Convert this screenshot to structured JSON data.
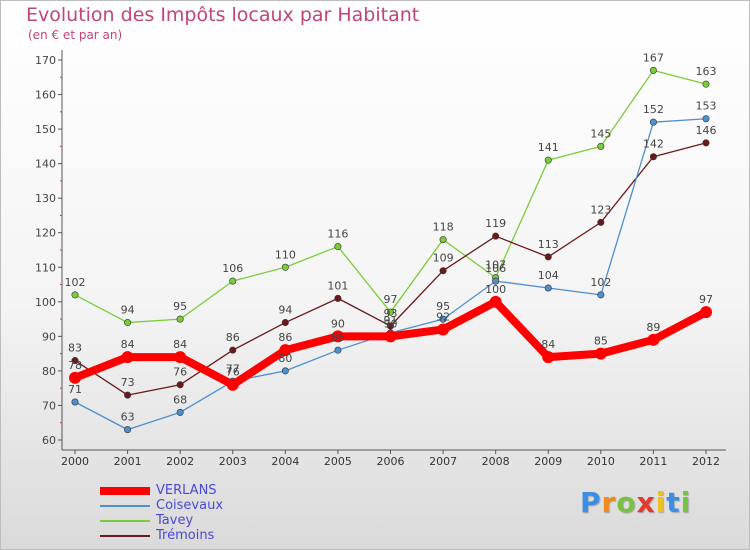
{
  "header": {
    "title": "Evolution des Impôts locaux par Habitant",
    "subtitle": "(en € et par an)"
  },
  "logo": {
    "letters": [
      "P",
      "r",
      "o",
      "x",
      "i",
      "t",
      "i"
    ],
    "colors": [
      "#3a8ee6",
      "#f08a1c",
      "#79c043",
      "#e23a2a",
      "#f0c020",
      "#3a8ee6",
      "#79c043"
    ]
  },
  "chart_data": {
    "type": "line",
    "title": "Evolution des Impôts locaux par Habitant",
    "subtitle": "(en € et par an)",
    "xlabel": "",
    "ylabel": "",
    "ylim": [
      60,
      170
    ],
    "yticks": [
      60,
      70,
      80,
      90,
      100,
      110,
      120,
      130,
      140,
      150,
      160,
      170
    ],
    "grid": false,
    "legend_position": "bottom-left",
    "categories": [
      "2000",
      "2001",
      "2002",
      "2003",
      "2004",
      "2005",
      "2006",
      "2007",
      "2008",
      "2009",
      "2010",
      "2011",
      "2012"
    ],
    "series": [
      {
        "name": "VERLANS",
        "color": "#ff0000",
        "values": [
          78,
          84,
          84,
          76,
          86,
          90,
          90,
          92,
          100,
          84,
          85,
          89,
          97
        ]
      },
      {
        "name": "Coisevaux",
        "color": "#4d8fcf",
        "values": [
          71,
          63,
          68,
          77,
          80,
          86,
          91,
          95,
          106,
          104,
          102,
          152,
          153
        ]
      },
      {
        "name": "Tavey",
        "color": "#7acc3a",
        "values": [
          102,
          94,
          95,
          106,
          110,
          116,
          97,
          118,
          107,
          141,
          145,
          167,
          163
        ]
      },
      {
        "name": "Trémoins",
        "color": "#6b1a1a",
        "values": [
          83,
          73,
          76,
          86,
          94,
          101,
          93,
          109,
          119,
          113,
          123,
          142,
          146
        ]
      }
    ]
  }
}
